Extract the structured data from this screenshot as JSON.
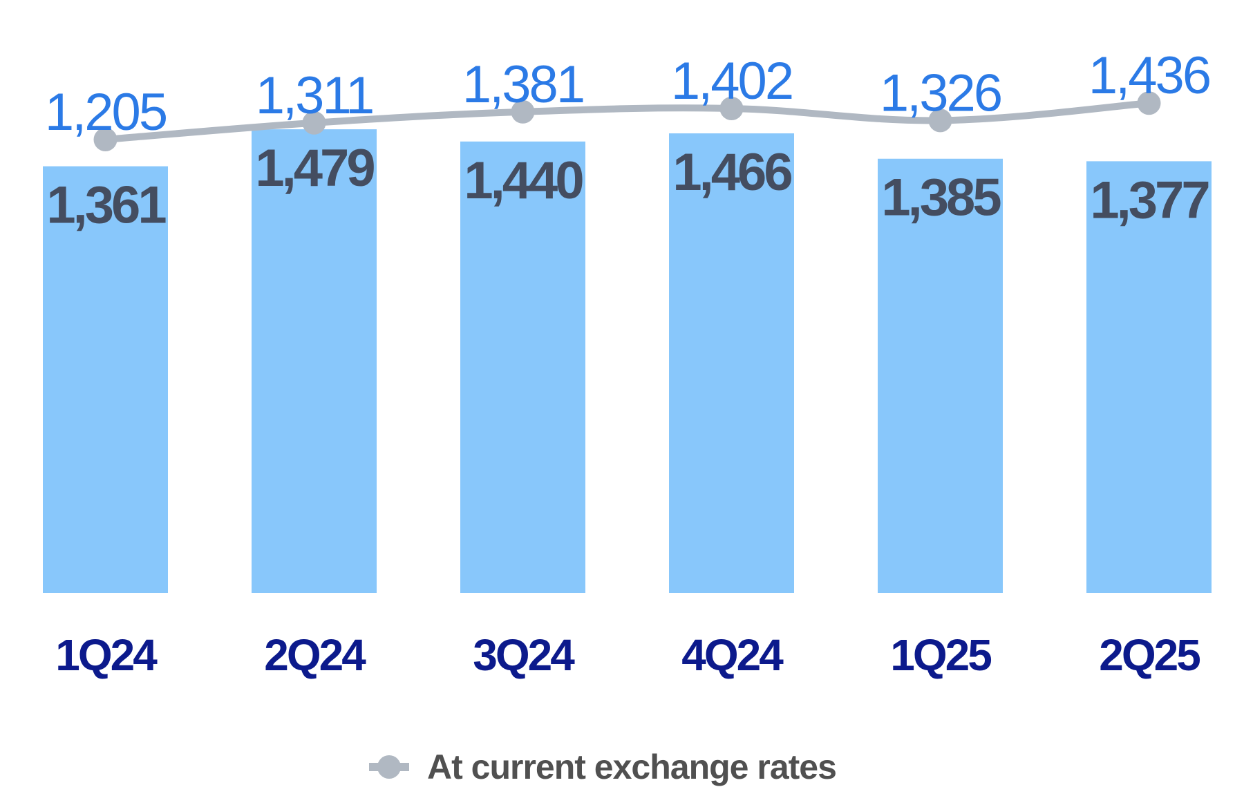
{
  "chart_data": {
    "type": "bar",
    "categories": [
      "1Q24",
      "2Q24",
      "3Q24",
      "4Q24",
      "1Q25",
      "2Q25"
    ],
    "series": [
      {
        "type": "bar",
        "values": [
          1361,
          1479,
          1440,
          1466,
          1385,
          1377
        ],
        "labels": [
          "1,361",
          "1,479",
          "1,440",
          "1,466",
          "1,385",
          "1,377"
        ]
      },
      {
        "type": "line",
        "name": "At current exchange rates",
        "values": [
          1205,
          1311,
          1381,
          1402,
          1326,
          1436
        ],
        "labels": [
          "1,205",
          "1,311",
          "1,381",
          "1,402",
          "1,326",
          "1,436"
        ]
      }
    ],
    "legend": {
      "position": "bottom",
      "entries": [
        "At current exchange rates"
      ]
    },
    "colors": {
      "bar": "#88c7fb",
      "bar_label": "#444d60",
      "line": "#b0b8c2",
      "line_label": "#2b7ae6",
      "category_label": "#0c1a8c",
      "legend_text": "#505050"
    },
    "grid": false
  }
}
